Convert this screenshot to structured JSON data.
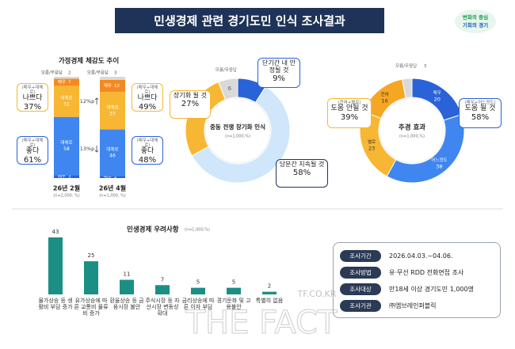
{
  "header": {
    "title": "민생경제 관련 경기도민 인식 조사결과",
    "logo": [
      "변화의 중심",
      "기회의 경기"
    ]
  },
  "chart_data": [
    {
      "type": "stacked-bar",
      "title": "가정경제 체감도 추이",
      "categories": [
        "26년 2월",
        "26년 4월"
      ],
      "notes": [
        "(n=2,000, %)",
        "(n=1,000, %)"
      ],
      "series": [
        {
          "name": "매우",
          "color": "#2a62d8",
          "values": [
            3,
            2
          ]
        },
        {
          "name": "대체로",
          "color": "#3f86f0",
          "values": [
            58,
            46
          ]
        },
        {
          "name": "대체로",
          "color": "#f7b733",
          "values": [
            31,
            37
          ]
        },
        {
          "name": "매우",
          "color": "#f5891f",
          "values": [
            7,
            12
          ]
        },
        {
          "name": "모름/무응답",
          "color": "#d9d9d9",
          "values": [
            2,
            3
          ]
        }
      ],
      "callouts": [
        [
          {
            "note": "(매우+대체로)",
            "label": "나쁘다",
            "text": "37%"
          },
          {
            "note": "(매우+대체로)",
            "label": "좋다",
            "text": "61%"
          }
        ],
        [
          {
            "note": "(매우+대체로)",
            "label": "나쁘다",
            "text": "49%"
          },
          {
            "note": "(매우+대체로)",
            "label": "좋다",
            "text": "48%"
          }
        ]
      ],
      "changes": [
        "12%p",
        "13%p"
      ]
    },
    {
      "type": "donut",
      "title": "중동 전쟁 장기화 인식",
      "note": "(n=1,000,%)",
      "categories": [
        "단기간 내 안정될 것",
        "당분간 지속될 것",
        "장기화 될 것",
        "모름/무응답"
      ],
      "values": [
        9,
        58,
        27,
        6
      ],
      "value_labels": [
        "9%",
        "58%",
        "27%",
        "6"
      ],
      "colors": [
        "#2a62d8",
        "#cfe6fb",
        "#f7b733",
        "#d9d9d9"
      ]
    },
    {
      "type": "donut",
      "title": "추경 효과",
      "note": "(n=1,000,%)",
      "categories": [
        "매우",
        "어느정도",
        "별로",
        "전혀",
        "모름/무응답"
      ],
      "values": [
        20,
        38,
        23,
        16,
        3
      ],
      "colors": [
        "#2a62d8",
        "#3f86f0",
        "#f7b733",
        "#f5a623",
        "#d9d9d9"
      ],
      "callouts": [
        {
          "note": "(매우+어느정도)",
          "label": "도움 될 것",
          "text": "58%"
        },
        {
          "note": "(전혀+별로)",
          "label": "도움 안될 것",
          "text": "39%"
        }
      ]
    },
    {
      "type": "bar",
      "title": "민생경제 우려사항",
      "note": "(n=1,000,%)",
      "categories": [
        "물가상승 등 생활비 부담 증가",
        "유가상승에 따른 교통비 물류비 증가",
        "환율상승 등 금융시장 불안",
        "주식시장 등 자산시장 변동성 확대",
        "금리상승에 따른 이자 부담",
        "경기둔화 및 고용불안",
        "특별히 없음"
      ],
      "values": [
        43,
        25,
        11,
        7,
        5,
        5,
        2
      ],
      "color": "#1b8f83"
    }
  ],
  "survey_info": [
    [
      "조사기간",
      "2026.04.03.~04.06."
    ],
    [
      "조사방법",
      "유·무선 RDD 전화면접 조사"
    ],
    [
      "조사대상",
      "만18세 이상 경기도민 1,000명"
    ],
    [
      "조사기관",
      "㈜엠브레인퍼블릭"
    ]
  ],
  "watermark": [
    "TF.CO.KR",
    "THE FACT"
  ]
}
